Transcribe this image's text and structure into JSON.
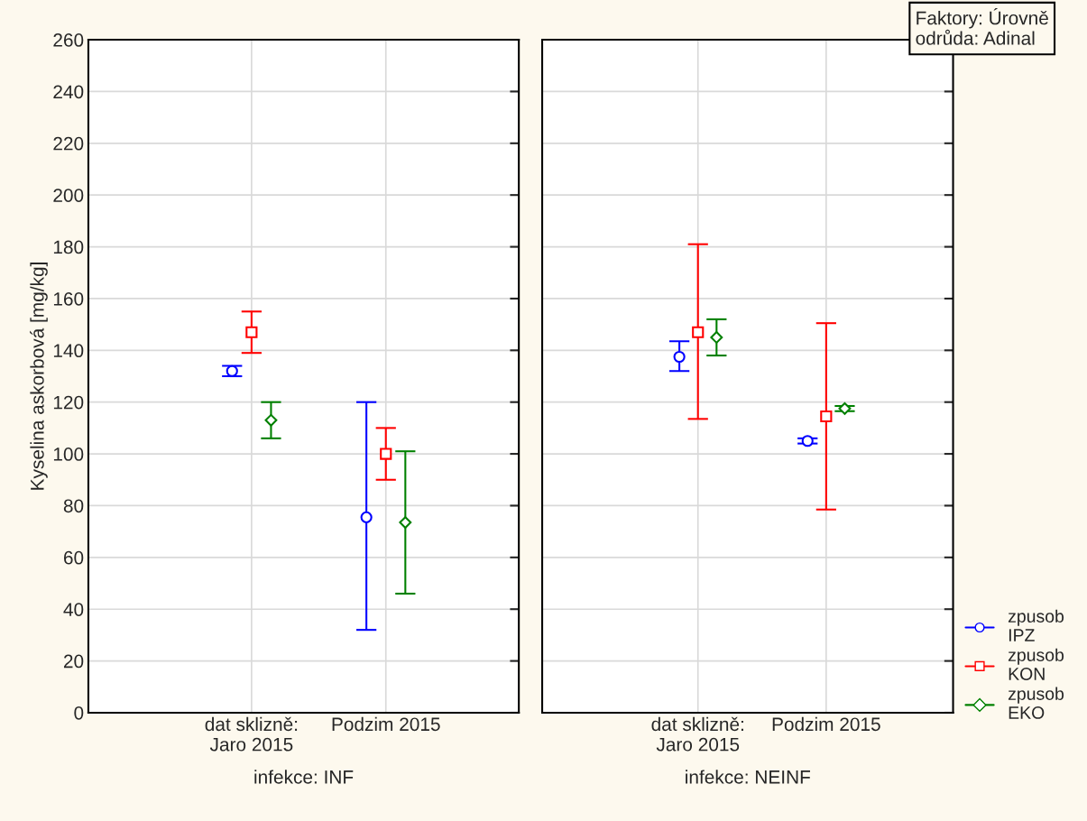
{
  "chart_data": [
    {
      "type": "scatter",
      "categories": [
        "dat sklizně:\nJaro 2015",
        "Podzim 2015"
      ],
      "xlabel": "infekce: INF",
      "ylabel": "Kyselina askorbová [mg/kg]",
      "ylim": [
        0,
        260
      ],
      "yticks": [
        0,
        20,
        40,
        60,
        80,
        100,
        120,
        140,
        160,
        180,
        200,
        220,
        240,
        260
      ],
      "grid": true,
      "series": [
        {
          "color": "#0000ff",
          "marker": "circle",
          "values": [
            132,
            75.5
          ],
          "errors": [
            [
              130,
              134
            ],
            [
              32,
              120
            ]
          ]
        },
        {
          "color": "#ff0000",
          "marker": "square",
          "values": [
            147,
            100
          ],
          "errors": [
            [
              139,
              155
            ],
            [
              90,
              110
            ]
          ]
        },
        {
          "color": "#008000",
          "marker": "diamond",
          "values": [
            113,
            73.5
          ],
          "errors": [
            [
              106,
              120
            ],
            [
              46,
              101
            ]
          ]
        }
      ]
    },
    {
      "type": "scatter",
      "categories": [
        "dat sklizně:\nJaro 2015",
        "Podzim 2015"
      ],
      "xlabel": "infekce: NEINF",
      "ylim": [
        0,
        260
      ],
      "yticks": [
        0,
        20,
        40,
        60,
        80,
        100,
        120,
        140,
        160,
        180,
        200,
        220,
        240,
        260
      ],
      "grid": true,
      "tick_labels": "x",
      "legend": "bottom right",
      "annotations": [
        "Faktory: Úrovně\nodrůda: Adinal"
      ],
      "series": [
        {
          "name": "zpusob\nIPZ",
          "color": "#0000ff",
          "marker": "circle",
          "values": [
            137.5,
            105
          ],
          "errors": [
            [
              132,
              143.5
            ],
            [
              104,
              106
            ]
          ]
        },
        {
          "name": "zpusob\nKON",
          "color": "#ff0000",
          "marker": "square",
          "values": [
            147,
            114.5
          ],
          "errors": [
            [
              113.5,
              181
            ],
            [
              78.5,
              150.5
            ]
          ]
        },
        {
          "name": "zpusob\nEKO",
          "color": "#008000",
          "marker": "diamond",
          "values": [
            145,
            117.5
          ],
          "errors": [
            [
              138,
              152
            ],
            [
              116.5,
              118.5
            ]
          ]
        }
      ]
    }
  ]
}
